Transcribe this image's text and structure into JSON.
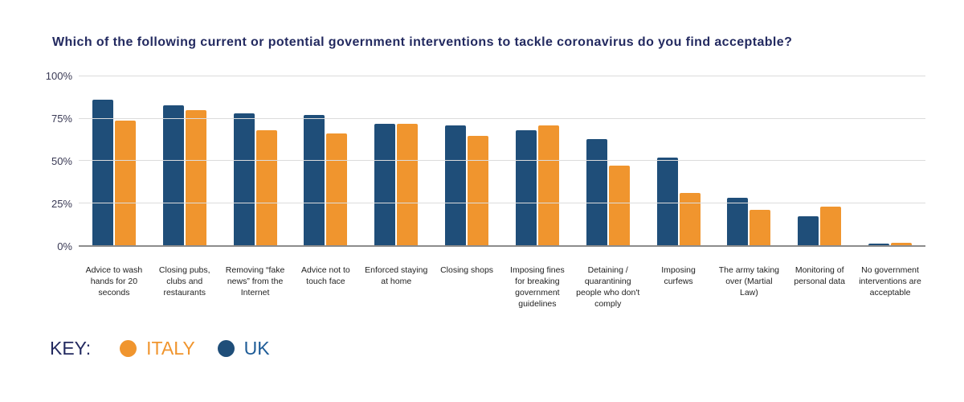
{
  "title": "Which of the following current or potential government interventions to tackle coronavirus do you find acceptable?",
  "colors": {
    "uk_bar": "#1F4E79",
    "italy_bar": "#F0952E",
    "title_navy": "#232A60",
    "uk_label_text": "#1E5C97",
    "italy_label_text": "#F0952E",
    "gridline": "#DCDCDC",
    "axis_line": "#8C8C8C"
  },
  "chart_data": {
    "type": "bar",
    "title": "Which of the following current or potential government interventions to tackle coronavirus do you find acceptable?",
    "categories": [
      "Advice to wash hands for 20 seconds",
      "Closing pubs, clubs and restaurants",
      "Removing “fake news” from the Internet",
      "Advice not to touch face",
      "Enforced staying at home",
      "Closing shops",
      "Imposing fines for breaking government guidelines",
      "Detaining / quarantining people who don't comply",
      "Imposing curfews",
      "The army taking over (Martial Law)",
      "Monitoring of personal data",
      "No government interventions are acceptable"
    ],
    "series": [
      {
        "name": "UK",
        "color_key": "uk_bar",
        "values": [
          86,
          83,
          78,
          77,
          72,
          71,
          68,
          63,
          52,
          28,
          17,
          1
        ]
      },
      {
        "name": "ITALY",
        "color_key": "italy_bar",
        "values": [
          74,
          80,
          68,
          66,
          72,
          65,
          71,
          47,
          31,
          21,
          23,
          1.5
        ]
      }
    ],
    "ticks": [
      {
        "label": "100%",
        "value": 100
      },
      {
        "label": "75%",
        "value": 75
      },
      {
        "label": "50%",
        "value": 50
      },
      {
        "label": "25%",
        "value": 25
      },
      {
        "label": "0%",
        "value": 0
      }
    ],
    "ylim": [
      0,
      100
    ],
    "grid": true,
    "legend_position": "bottom"
  },
  "legend": {
    "key_label": "KEY:",
    "items": [
      {
        "label": "ITALY",
        "color_key": "italy_bar",
        "text_color_key": "italy_label_text"
      },
      {
        "label": "UK",
        "color_key": "uk_bar",
        "text_color_key": "uk_label_text"
      }
    ]
  }
}
